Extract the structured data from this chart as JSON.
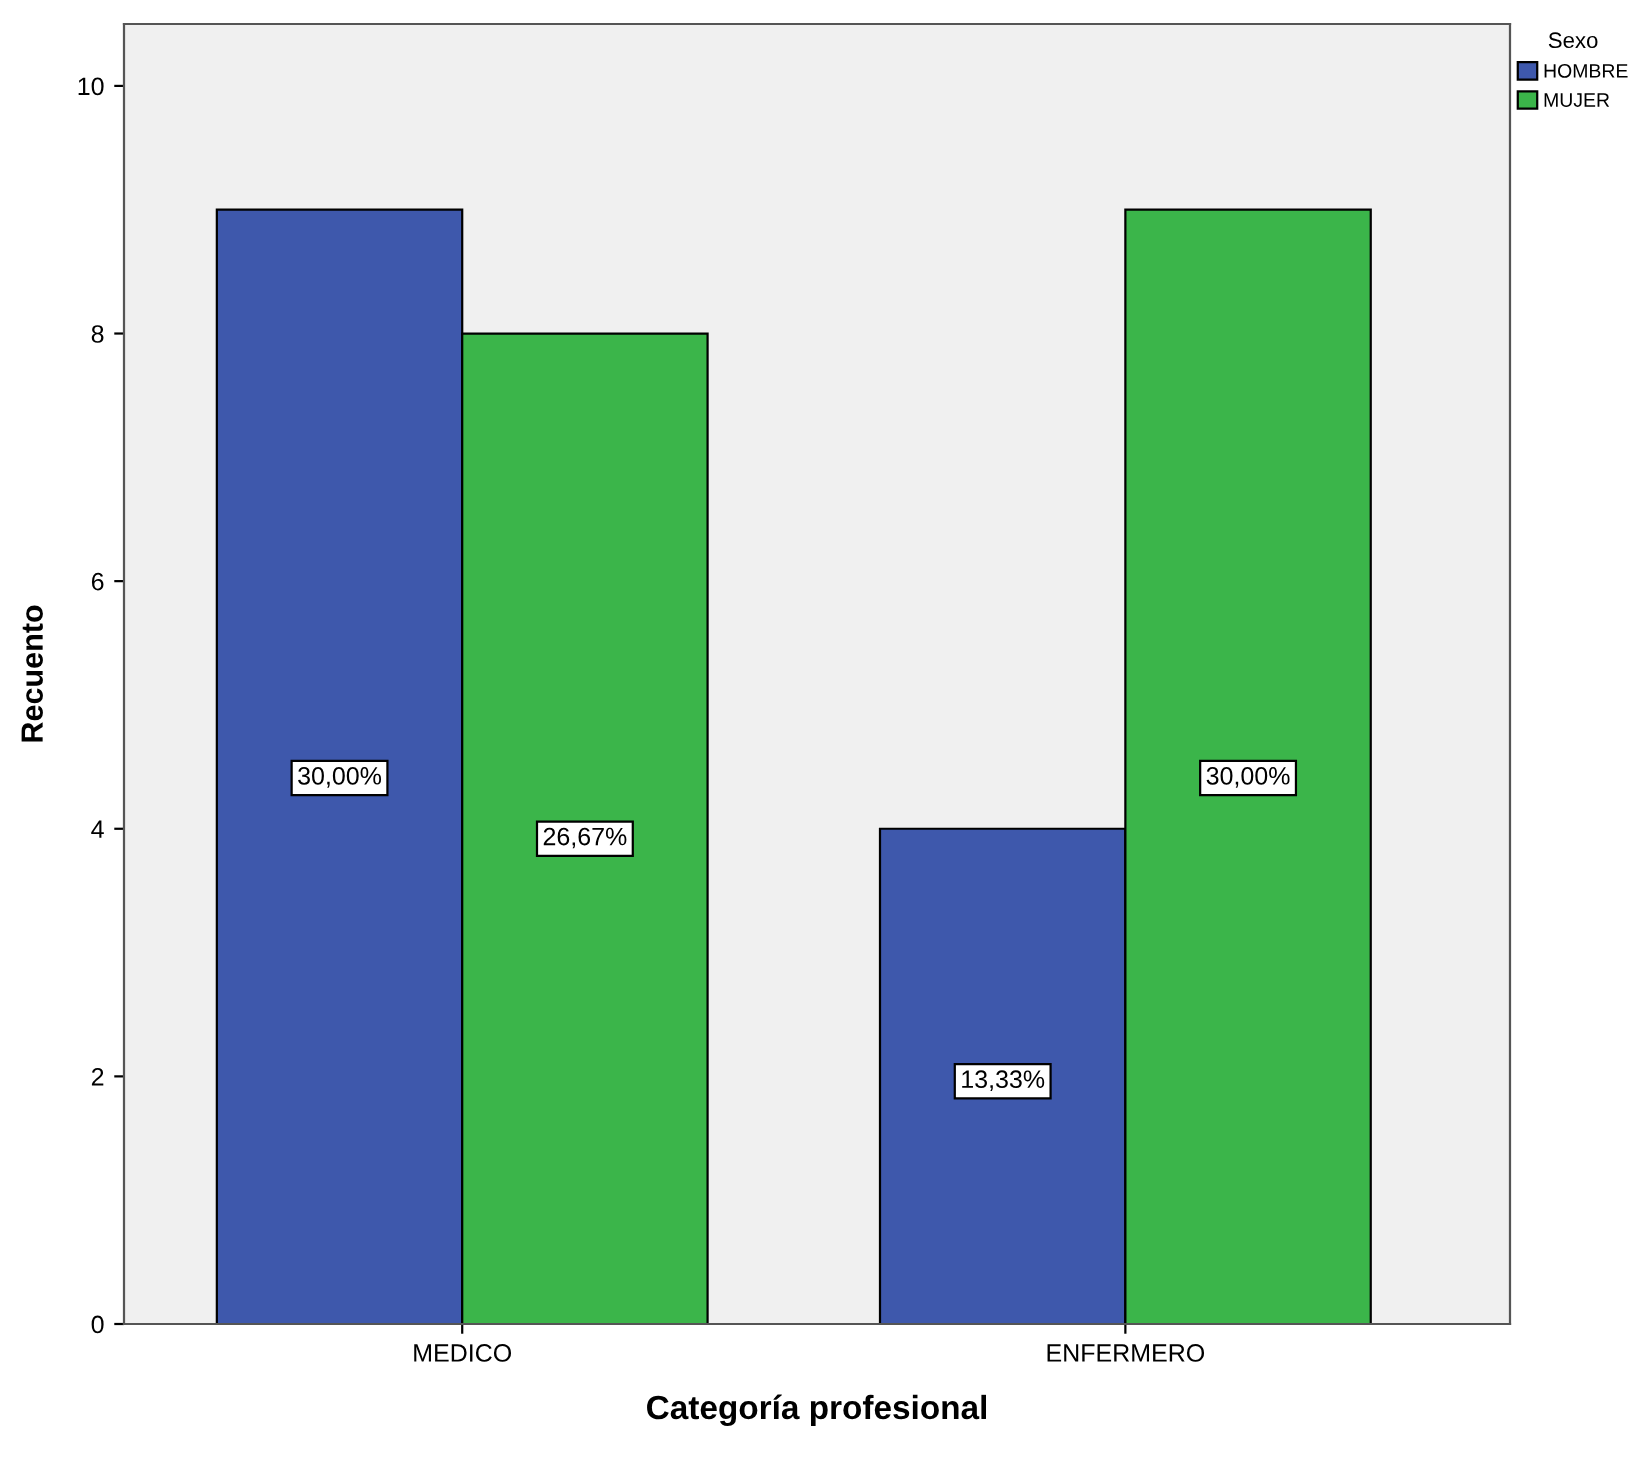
{
  "chart_data": {
    "type": "bar",
    "xlabel": "Categoría profesional",
    "ylabel": "Recuento",
    "legend_title": "Sexo",
    "categories": [
      "MEDICO",
      "ENFERMERO"
    ],
    "series": [
      {
        "name": "HOMBRE",
        "color": "#3e58ac",
        "values": [
          9,
          4
        ]
      },
      {
        "name": "MUJER",
        "color": "#3bb54a",
        "values": [
          8,
          9
        ]
      }
    ],
    "annotations": [
      "30,00%",
      "26,67%",
      "13,33%",
      "30,00%"
    ],
    "ylim": [
      0,
      10.5
    ],
    "yticks": [
      0,
      2,
      4,
      6,
      8,
      10
    ],
    "grid": false,
    "legend": "top right"
  }
}
